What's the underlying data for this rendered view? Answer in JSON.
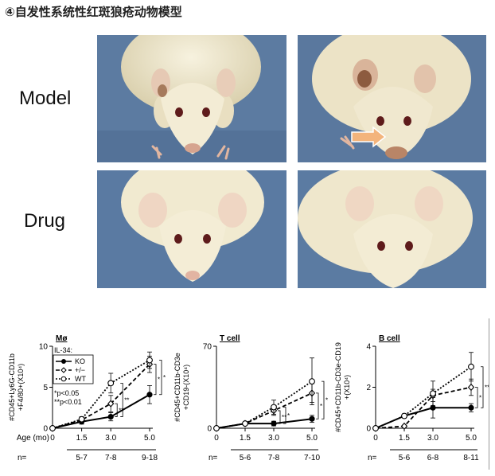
{
  "heading": "④自发性系统性红斑狼疮动物模型",
  "row_labels": {
    "model": "Model",
    "drug": "Drug"
  },
  "photos": [
    {
      "name": "mouse-photo-model-left",
      "group": "Model",
      "lesion": "ear"
    },
    {
      "name": "mouse-photo-model-right",
      "group": "Model",
      "lesion": "ear-and-snout",
      "arrow": true
    },
    {
      "name": "mouse-photo-drug-left",
      "group": "Drug",
      "lesion": "none"
    },
    {
      "name": "mouse-photo-drug-right",
      "group": "Drug",
      "lesion": "none"
    }
  ],
  "colors": {
    "backdrop": "#5b7aa0",
    "mouse_fur": "#f1ead3",
    "eye": "#5e1b1b",
    "arrow": "#f0b27e"
  },
  "chart_data": [
    {
      "type": "line",
      "title": "Mø",
      "ylabel": "#CD45+Ly6G-CD11b+F4/80+(X10⁴)",
      "ylim": [
        0,
        10
      ],
      "yticks": [
        0,
        5,
        10
      ],
      "xticks": [
        0,
        1.5,
        3.0,
        5.0
      ],
      "x_axis_title": "Age (mo)",
      "n_label": "n=",
      "n_values": [
        "5-7",
        "7-8",
        "9-18"
      ],
      "legend": {
        "title": "IL-34:",
        "position": "top-left",
        "entries": [
          "KO",
          "+/−",
          "WT"
        ]
      },
      "significance_note": [
        "*p<0.05",
        "**p<0.01"
      ],
      "series": [
        {
          "name": "KO",
          "style": "solid-filled",
          "x": [
            0,
            1.5,
            3.0,
            5.0
          ],
          "y": [
            0,
            0.8,
            1.4,
            4.1
          ],
          "err": [
            0,
            0.3,
            0.5,
            1.1
          ]
        },
        {
          "name": "+/−",
          "style": "dashed-diamond",
          "x": [
            0,
            1.5,
            3.0,
            5.0
          ],
          "y": [
            0,
            1.0,
            3.0,
            7.8
          ],
          "err": [
            0,
            0.3,
            1.0,
            1.0
          ]
        },
        {
          "name": "WT",
          "style": "dotted-open",
          "x": [
            0,
            1.5,
            3.0,
            5.0
          ],
          "y": [
            0,
            1.1,
            5.5,
            8.3
          ],
          "err": [
            0,
            0.3,
            1.2,
            1.0
          ]
        }
      ],
      "brackets": [
        {
          "x": 3.0,
          "y0": 1.4,
          "y1": 3.0,
          "label": "**"
        },
        {
          "x": 3.0,
          "y0": 1.4,
          "y1": 5.5,
          "label": "**"
        },
        {
          "x": 5.0,
          "y0": 4.1,
          "y1": 7.8,
          "label": "*"
        },
        {
          "x": 5.0,
          "y0": 4.1,
          "y1": 8.3,
          "label": "*"
        }
      ]
    },
    {
      "type": "line",
      "title": "T cell",
      "ylabel": "#CD45+CD11b-CD3e+CD19-(X10⁴)",
      "ylim": [
        0,
        70
      ],
      "yticks": [
        0,
        70
      ],
      "xticks": [
        0,
        1.5,
        3.0,
        5.0
      ],
      "x_axis_title": "",
      "n_label": "n=",
      "n_values": [
        "5-6",
        "7-8",
        "7-10"
      ],
      "series": [
        {
          "name": "KO",
          "style": "solid-filled",
          "x": [
            0,
            1.5,
            3.0,
            5.0
          ],
          "y": [
            0,
            4,
            4,
            8
          ],
          "err": [
            0,
            1,
            2,
            3
          ]
        },
        {
          "name": "+/−",
          "style": "dashed-diamond",
          "x": [
            0,
            1.5,
            3.0,
            5.0
          ],
          "y": [
            0,
            4,
            15,
            30
          ],
          "err": [
            0,
            1,
            4,
            8
          ]
        },
        {
          "name": "WT",
          "style": "dotted-open",
          "x": [
            0,
            1.5,
            3.0,
            5.0
          ],
          "y": [
            0,
            4,
            18,
            40
          ],
          "err": [
            0,
            1,
            6,
            20
          ]
        }
      ],
      "brackets": [
        {
          "x": 3.0,
          "y0": 4,
          "y1": 15,
          "label": "**"
        },
        {
          "x": 3.0,
          "y0": 4,
          "y1": 18,
          "label": "*"
        },
        {
          "x": 5.0,
          "y0": 8,
          "y1": 30,
          "label": "*"
        },
        {
          "x": 5.0,
          "y0": 8,
          "y1": 40,
          "label": "*"
        }
      ]
    },
    {
      "type": "line",
      "title": "B cell",
      "ylabel": "#CD45+CD11b-CD3e-CD19+(X10⁴)",
      "ylim": [
        0,
        4
      ],
      "yticks": [
        0,
        2,
        4
      ],
      "xticks": [
        0,
        1.5,
        3.0,
        5.0
      ],
      "x_axis_title": "",
      "n_label": "n=",
      "n_values": [
        "5-6",
        "6-8",
        "8-11"
      ],
      "series": [
        {
          "name": "KO",
          "style": "solid-filled",
          "x": [
            0,
            1.5,
            3.0,
            5.0
          ],
          "y": [
            0,
            0.6,
            1.0,
            1.0
          ],
          "err": [
            0,
            0.1,
            0.5,
            0.2
          ]
        },
        {
          "name": "+/−",
          "style": "dashed-diamond",
          "x": [
            0,
            1.5,
            3.0,
            5.0
          ],
          "y": [
            0,
            0.1,
            1.6,
            2.0
          ],
          "err": [
            0,
            0.05,
            0.3,
            0.4
          ]
        },
        {
          "name": "WT",
          "style": "dotted-open",
          "x": [
            0,
            1.5,
            3.0,
            5.0
          ],
          "y": [
            0,
            0.6,
            1.7,
            3.0
          ],
          "err": [
            0,
            0.1,
            0.6,
            0.7
          ]
        }
      ],
      "brackets": [
        {
          "x": 5.0,
          "y0": 1.0,
          "y1": 2.0,
          "label": "*"
        },
        {
          "x": 5.0,
          "y0": 1.0,
          "y1": 3.0,
          "label": "**"
        }
      ]
    }
  ]
}
